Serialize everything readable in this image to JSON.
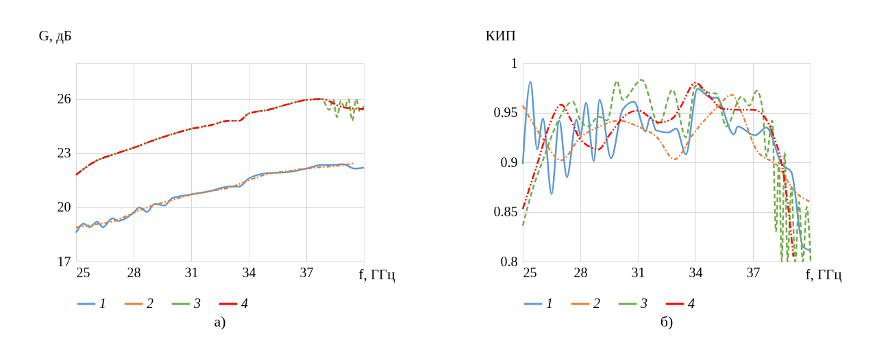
{
  "chart_data": [
    {
      "type": "line",
      "title": "а)",
      "ylabel": "G, дБ",
      "xlabel": "f, ГГц",
      "xlim": [
        25,
        40
      ],
      "xticks": [
        25,
        28,
        31,
        34,
        37
      ],
      "ylim": [
        17,
        28
      ],
      "yticks": [
        17,
        20,
        23,
        26
      ],
      "grid": true,
      "legend": "bottom",
      "marker": "none",
      "series": [
        {
          "name": "1",
          "color": "#5b9bd5",
          "line_style": "solid",
          "x": [
            25,
            25.4,
            25.7,
            26.1,
            26.4,
            26.9,
            27.2,
            28,
            28.3,
            28.7,
            29.1,
            29.6,
            30,
            30.9,
            32,
            33,
            33.5,
            34,
            35,
            36,
            37,
            37.8,
            38.5,
            38.9,
            39.5,
            40
          ],
          "values": [
            18.6,
            19.1,
            18.9,
            19.2,
            18.9,
            19.4,
            19.25,
            19.7,
            20.0,
            19.75,
            20.2,
            20.1,
            20.5,
            20.7,
            20.9,
            21.15,
            21.15,
            21.6,
            21.9,
            21.95,
            22.15,
            22.35,
            22.35,
            22.4,
            22.15,
            22.2
          ]
        },
        {
          "name": "2",
          "color": "#ed7d31",
          "line_style": "dashdot",
          "x": [
            25,
            26,
            27,
            28,
            29,
            30,
            31,
            32,
            33,
            34,
            35,
            36,
            37,
            38,
            39,
            39.5
          ],
          "values": [
            18.9,
            19.05,
            19.25,
            19.7,
            20.1,
            20.4,
            20.7,
            20.9,
            21.1,
            21.5,
            21.85,
            22.0,
            22.15,
            22.25,
            22.35,
            22.45
          ]
        },
        {
          "name": "3",
          "color": "#70ad47",
          "line_style": "dashed",
          "x": [
            25,
            26,
            27,
            28,
            29,
            30,
            31,
            32,
            33,
            33.5,
            34,
            35,
            36,
            37,
            37.8,
            38.2,
            38.4,
            38.6,
            38.8,
            39.0,
            39.2,
            39.4,
            39.6,
            39.8,
            40
          ],
          "values": [
            21.8,
            22.55,
            22.95,
            23.3,
            23.7,
            24.05,
            24.35,
            24.55,
            24.8,
            24.8,
            25.2,
            25.4,
            25.7,
            25.95,
            26.0,
            25.4,
            26.0,
            25.0,
            25.9,
            25.5,
            26.0,
            24.8,
            26.0,
            25.3,
            25.6
          ]
        },
        {
          "name": "4",
          "color": "#ff0000",
          "line_style": "dashdotdot",
          "x": [
            25,
            26,
            27,
            28,
            29,
            30,
            31,
            32,
            33,
            33.5,
            34,
            35,
            36,
            37,
            37.8,
            38.9,
            40
          ],
          "values": [
            21.8,
            22.55,
            22.95,
            23.3,
            23.7,
            24.05,
            24.35,
            24.55,
            24.8,
            24.8,
            25.2,
            25.4,
            25.7,
            25.95,
            26.0,
            25.55,
            25.45
          ]
        }
      ]
    },
    {
      "type": "line",
      "title": "б)",
      "ylabel": "КИП",
      "xlabel": "f, ГГц",
      "xlim": [
        25,
        40
      ],
      "xticks": [
        25,
        28,
        31,
        34,
        37
      ],
      "ylim": [
        0.8,
        1
      ],
      "yticks": [
        0.8,
        0.85,
        0.9,
        0.95,
        1
      ],
      "grid": true,
      "legend": "bottom",
      "marker": "none",
      "series": [
        {
          "name": "1",
          "color": "#5b9bd5",
          "line_style": "solid",
          "x": [
            25,
            25.4,
            25.75,
            26.05,
            26.5,
            26.9,
            27.3,
            27.8,
            28,
            28.3,
            28.7,
            29.0,
            29.6,
            30.2,
            30.8,
            31.4,
            31.65,
            31.95,
            32.6,
            33.0,
            33.5,
            34.1,
            34.8,
            35.1,
            36.0,
            36.2,
            37.1,
            37.7,
            38.5,
            39.0,
            39.6,
            40
          ],
          "values": [
            0.898,
            0.981,
            0.913,
            0.944,
            0.868,
            0.942,
            0.885,
            0.943,
            0.927,
            0.96,
            0.901,
            0.963,
            0.904,
            0.953,
            0.961,
            0.931,
            0.946,
            0.932,
            0.93,
            0.934,
            0.908,
            0.974,
            0.965,
            0.965,
            0.928,
            0.936,
            0.927,
            0.935,
            0.898,
            0.89,
            0.815,
            0.811
          ]
        },
        {
          "name": "2",
          "color": "#ed7d31",
          "line_style": "dashdot",
          "x": [
            25,
            26,
            27,
            28,
            29,
            30,
            31,
            32,
            32.9,
            33.9,
            35.1,
            35.9,
            36.4,
            37.2,
            38.3,
            39.2,
            40
          ],
          "values": [
            0.957,
            0.925,
            0.902,
            0.925,
            0.936,
            0.942,
            0.936,
            0.925,
            0.903,
            0.929,
            0.955,
            0.968,
            0.95,
            0.912,
            0.896,
            0.87,
            0.86
          ]
        },
        {
          "name": "3",
          "color": "#70ad47",
          "line_style": "dashed",
          "x": [
            25,
            25.5,
            26.05,
            26.8,
            27.6,
            28,
            28.4,
            28.95,
            29.4,
            29.9,
            30.2,
            31.2,
            32.1,
            32.8,
            33.5,
            34,
            34.7,
            35.1,
            35.6,
            36.4,
            36.8,
            37.2,
            37.5,
            37.7,
            38.0,
            38.2,
            38.35,
            38.5,
            38.65,
            38.8,
            39.0,
            39.2,
            39.4,
            39.6,
            39.8,
            40
          ],
          "values": [
            0.836,
            0.872,
            0.902,
            0.94,
            0.961,
            0.942,
            0.936,
            0.946,
            0.942,
            0.982,
            0.963,
            0.983,
            0.938,
            0.973,
            0.925,
            0.977,
            0.97,
            0.969,
            0.936,
            0.966,
            0.957,
            0.972,
            0.953,
            0.906,
            0.942,
            0.83,
            0.9,
            0.8,
            0.91,
            0.8,
            0.875,
            0.8,
            0.86,
            0.8,
            0.855,
            0.8
          ]
        },
        {
          "name": "4",
          "color": "#ff0000",
          "line_style": "dashdotdot",
          "x": [
            25,
            25.75,
            26.4,
            27,
            27.5,
            28,
            28.95,
            29.5,
            30.4,
            31,
            32.1,
            32.8,
            33.2,
            34,
            34.7,
            35.4,
            36.2,
            37,
            37.5,
            38.1,
            38.5,
            38.8,
            39.1
          ],
          "values": [
            0.853,
            0.898,
            0.938,
            0.958,
            0.943,
            0.923,
            0.913,
            0.927,
            0.948,
            0.952,
            0.94,
            0.944,
            0.955,
            0.98,
            0.967,
            0.954,
            0.953,
            0.953,
            0.948,
            0.925,
            0.898,
            0.86,
            0.805
          ]
        }
      ]
    }
  ]
}
